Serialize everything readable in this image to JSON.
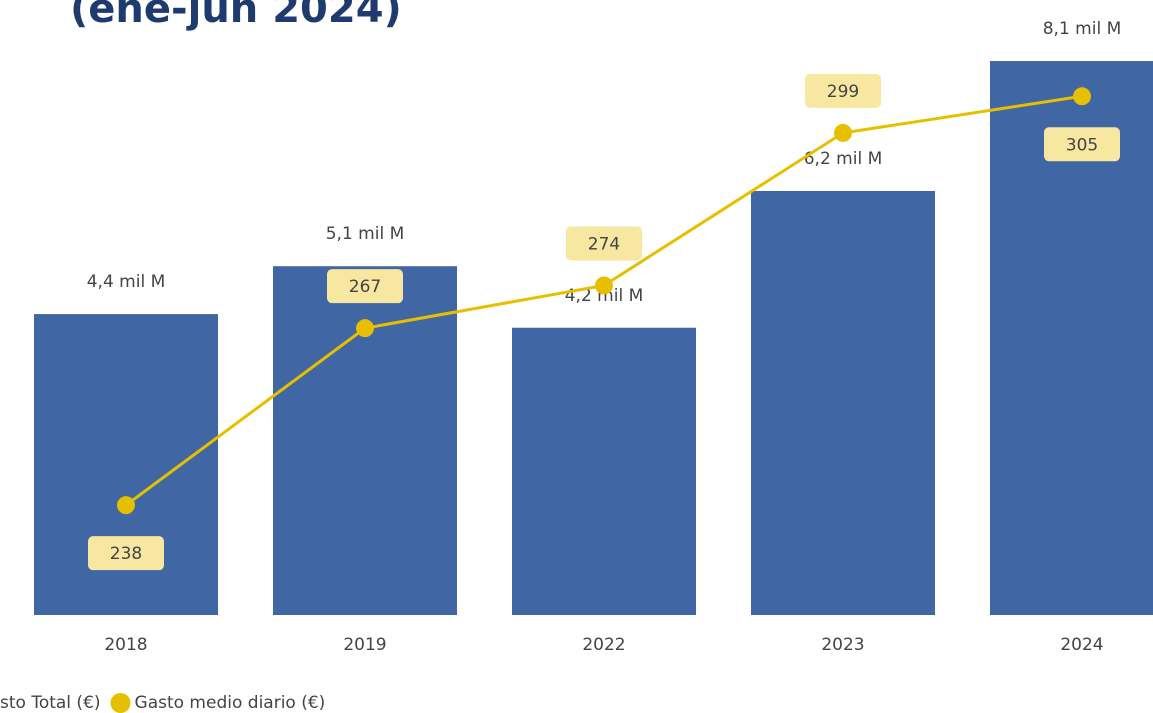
{
  "chart_data": {
    "type": "bar",
    "title": "(ene-jun 2024)",
    "categories": [
      "2018",
      "2019",
      "2022",
      "2023",
      "2024"
    ],
    "ylim": [
      0,
      8.7
    ],
    "y2lim": [
      220,
      317.5
    ],
    "series": [
      {
        "name": "sto Total (€)",
        "type": "bar",
        "color": "#4066a3",
        "values": [
          4.4,
          5.1,
          4.2,
          6.2,
          8.1
        ],
        "value_labels": [
          "4,4 mil M",
          "5,1 mil M",
          "4,2 mil M",
          "6,2 mil M",
          "8,1 mil M"
        ]
      },
      {
        "name": "Gasto medio diario (€)",
        "type": "line",
        "axis": "y2",
        "color": "#e6c000",
        "values": [
          238,
          267,
          274,
          299,
          305
        ]
      }
    ]
  }
}
